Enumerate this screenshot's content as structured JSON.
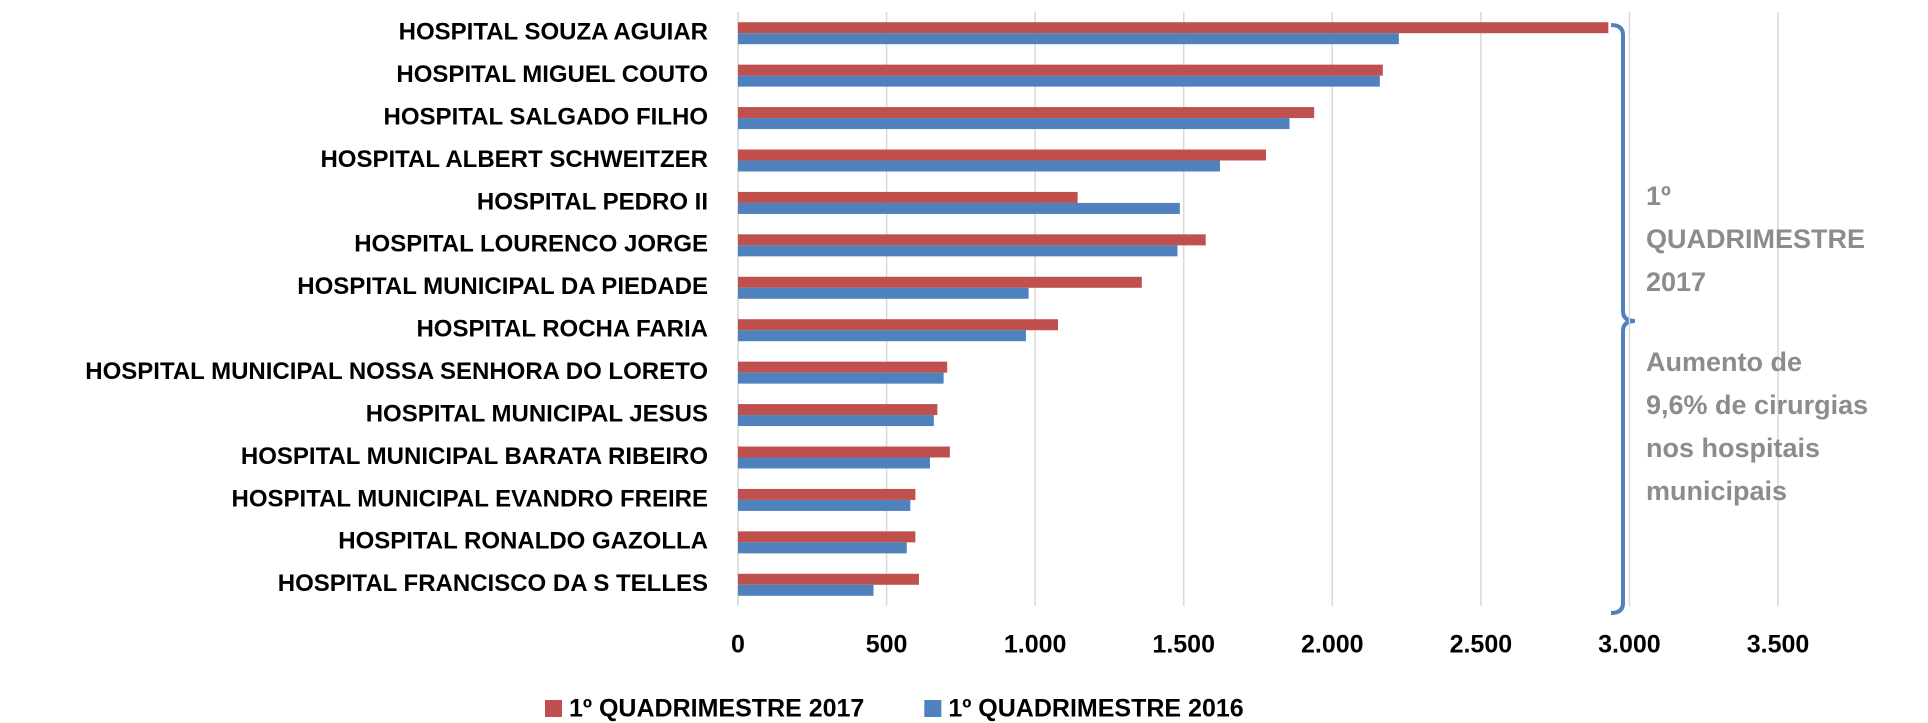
{
  "chart_data": {
    "type": "barh",
    "categories": [
      "HOSPITAL SOUZA AGUIAR",
      "HOSPITAL MIGUEL COUTO",
      "HOSPITAL SALGADO FILHO",
      "HOSPITAL ALBERT SCHWEITZER",
      "HOSPITAL PEDRO II",
      "HOSPITAL LOURENCO JORGE",
      "HOSPITAL MUNICIPAL DA PIEDADE",
      "HOSPITAL ROCHA FARIA",
      "HOSPITAL MUNICIPAL NOSSA SENHORA DO LORETO",
      "HOSPITAL MUNICIPAL JESUS",
      "HOSPITAL MUNICIPAL BARATA RIBEIRO",
      "HOSPITAL MUNICIPAL EVANDRO FREIRE",
      "HOSPITAL RONALDO GAZOLLA",
      "HOSPITAL FRANCISCO DA S TELLES"
    ],
    "series": [
      {
        "name": "1º QUADRIMESTRE 2017",
        "color": "#c0504d",
        "values": [
          2929,
          2170,
          1939,
          1777,
          1143,
          1574,
          1359,
          1077,
          704,
          671,
          713,
          597,
          597,
          609
        ]
      },
      {
        "name": "1º QUADRIMESTRE 2016",
        "color": "#4f81bd",
        "values": [
          2224,
          2160,
          1856,
          1622,
          1487,
          1479,
          978,
          969,
          692,
          659,
          646,
          580,
          568,
          456
        ]
      }
    ],
    "xlim": [
      0,
      3500
    ],
    "xticks": [
      0,
      {
        "value": 500,
        "label": "500"
      },
      {
        "value": 1000,
        "label": "1.000"
      },
      {
        "value": 1500,
        "label": "1.500"
      },
      {
        "value": 2000,
        "label": "2.000"
      },
      {
        "value": 2500,
        "label": "2.500"
      },
      {
        "value": 3000,
        "label": "3.000"
      },
      {
        "value": 3500,
        "label": "3.500"
      }
    ],
    "grid": true,
    "legend": "bottom",
    "annotations": [
      {
        "lines": [
          "1º",
          "QUADRIMESTRE",
          "2017"
        ]
      },
      {
        "lines": [
          "Aumento de",
          "9,6% de cirurgias",
          "nos hospitais",
          "municipais"
        ]
      }
    ]
  }
}
